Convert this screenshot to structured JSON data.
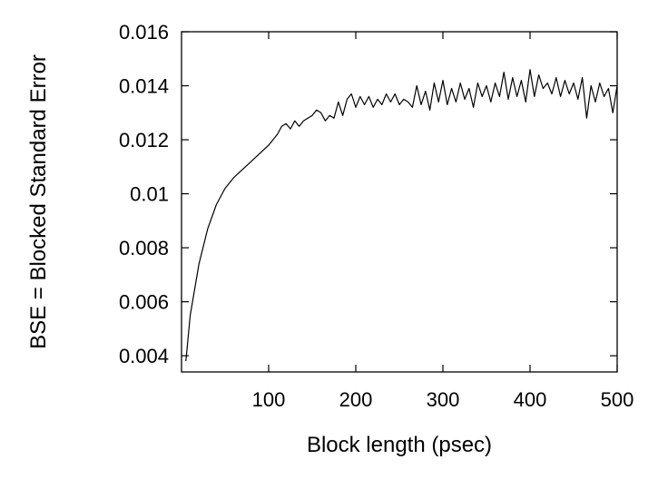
{
  "chart_data": {
    "type": "line",
    "title": "",
    "xlabel": "Block length (psec)",
    "ylabel": "BSE = Blocked Standard Error",
    "xlim": [
      0,
      500
    ],
    "ylim": [
      0.0034,
      0.016
    ],
    "xticks": [
      100,
      200,
      300,
      400,
      500
    ],
    "xtick_labels": [
      "100",
      "200",
      "300",
      "400",
      "500"
    ],
    "yticks": [
      0.004,
      0.006,
      0.008,
      0.01,
      0.012,
      0.014,
      0.016
    ],
    "ytick_labels": [
      "0.004",
      "0.006",
      "0.008",
      "0.01",
      "0.012",
      "0.014",
      "0.016"
    ],
    "grid": false,
    "legend": "none",
    "line_color": "#000000",
    "series": [
      {
        "x": [
          5,
          10,
          20,
          30,
          40,
          50,
          60,
          70,
          80,
          90,
          100,
          110,
          115,
          120,
          125,
          130,
          135,
          140,
          145,
          150,
          155,
          160,
          165,
          170,
          175,
          180,
          185,
          190,
          195,
          200,
          205,
          210,
          215,
          220,
          225,
          230,
          235,
          240,
          245,
          250,
          255,
          260,
          265,
          270,
          275,
          280,
          285,
          290,
          295,
          300,
          305,
          310,
          315,
          320,
          325,
          330,
          335,
          340,
          345,
          350,
          355,
          360,
          365,
          370,
          375,
          380,
          385,
          390,
          395,
          400,
          405,
          410,
          415,
          420,
          425,
          430,
          435,
          440,
          445,
          450,
          455,
          460,
          465,
          470,
          475,
          480,
          485,
          490,
          495,
          500
        ],
        "y": [
          0.0038,
          0.0055,
          0.0074,
          0.0087,
          0.0096,
          0.0102,
          0.0106,
          0.0109,
          0.0112,
          0.0115,
          0.0118,
          0.0122,
          0.0125,
          0.0126,
          0.0124,
          0.0127,
          0.0125,
          0.0127,
          0.0128,
          0.0129,
          0.0131,
          0.013,
          0.0127,
          0.0129,
          0.0128,
          0.0134,
          0.0129,
          0.0135,
          0.0137,
          0.0132,
          0.0136,
          0.0133,
          0.0136,
          0.0132,
          0.0135,
          0.0133,
          0.0137,
          0.0134,
          0.0137,
          0.0133,
          0.0135,
          0.0134,
          0.0132,
          0.014,
          0.0133,
          0.0138,
          0.0131,
          0.0141,
          0.0134,
          0.0142,
          0.0133,
          0.0139,
          0.0134,
          0.0141,
          0.0135,
          0.0139,
          0.0132,
          0.0141,
          0.0136,
          0.014,
          0.0134,
          0.0141,
          0.0136,
          0.0145,
          0.0135,
          0.0143,
          0.0136,
          0.0142,
          0.0134,
          0.0146,
          0.0136,
          0.0144,
          0.0139,
          0.0141,
          0.0137,
          0.0143,
          0.0136,
          0.0142,
          0.0137,
          0.0141,
          0.0135,
          0.0143,
          0.0128,
          0.014,
          0.0134,
          0.0141,
          0.0136,
          0.0139,
          0.013,
          0.014
        ]
      }
    ]
  }
}
